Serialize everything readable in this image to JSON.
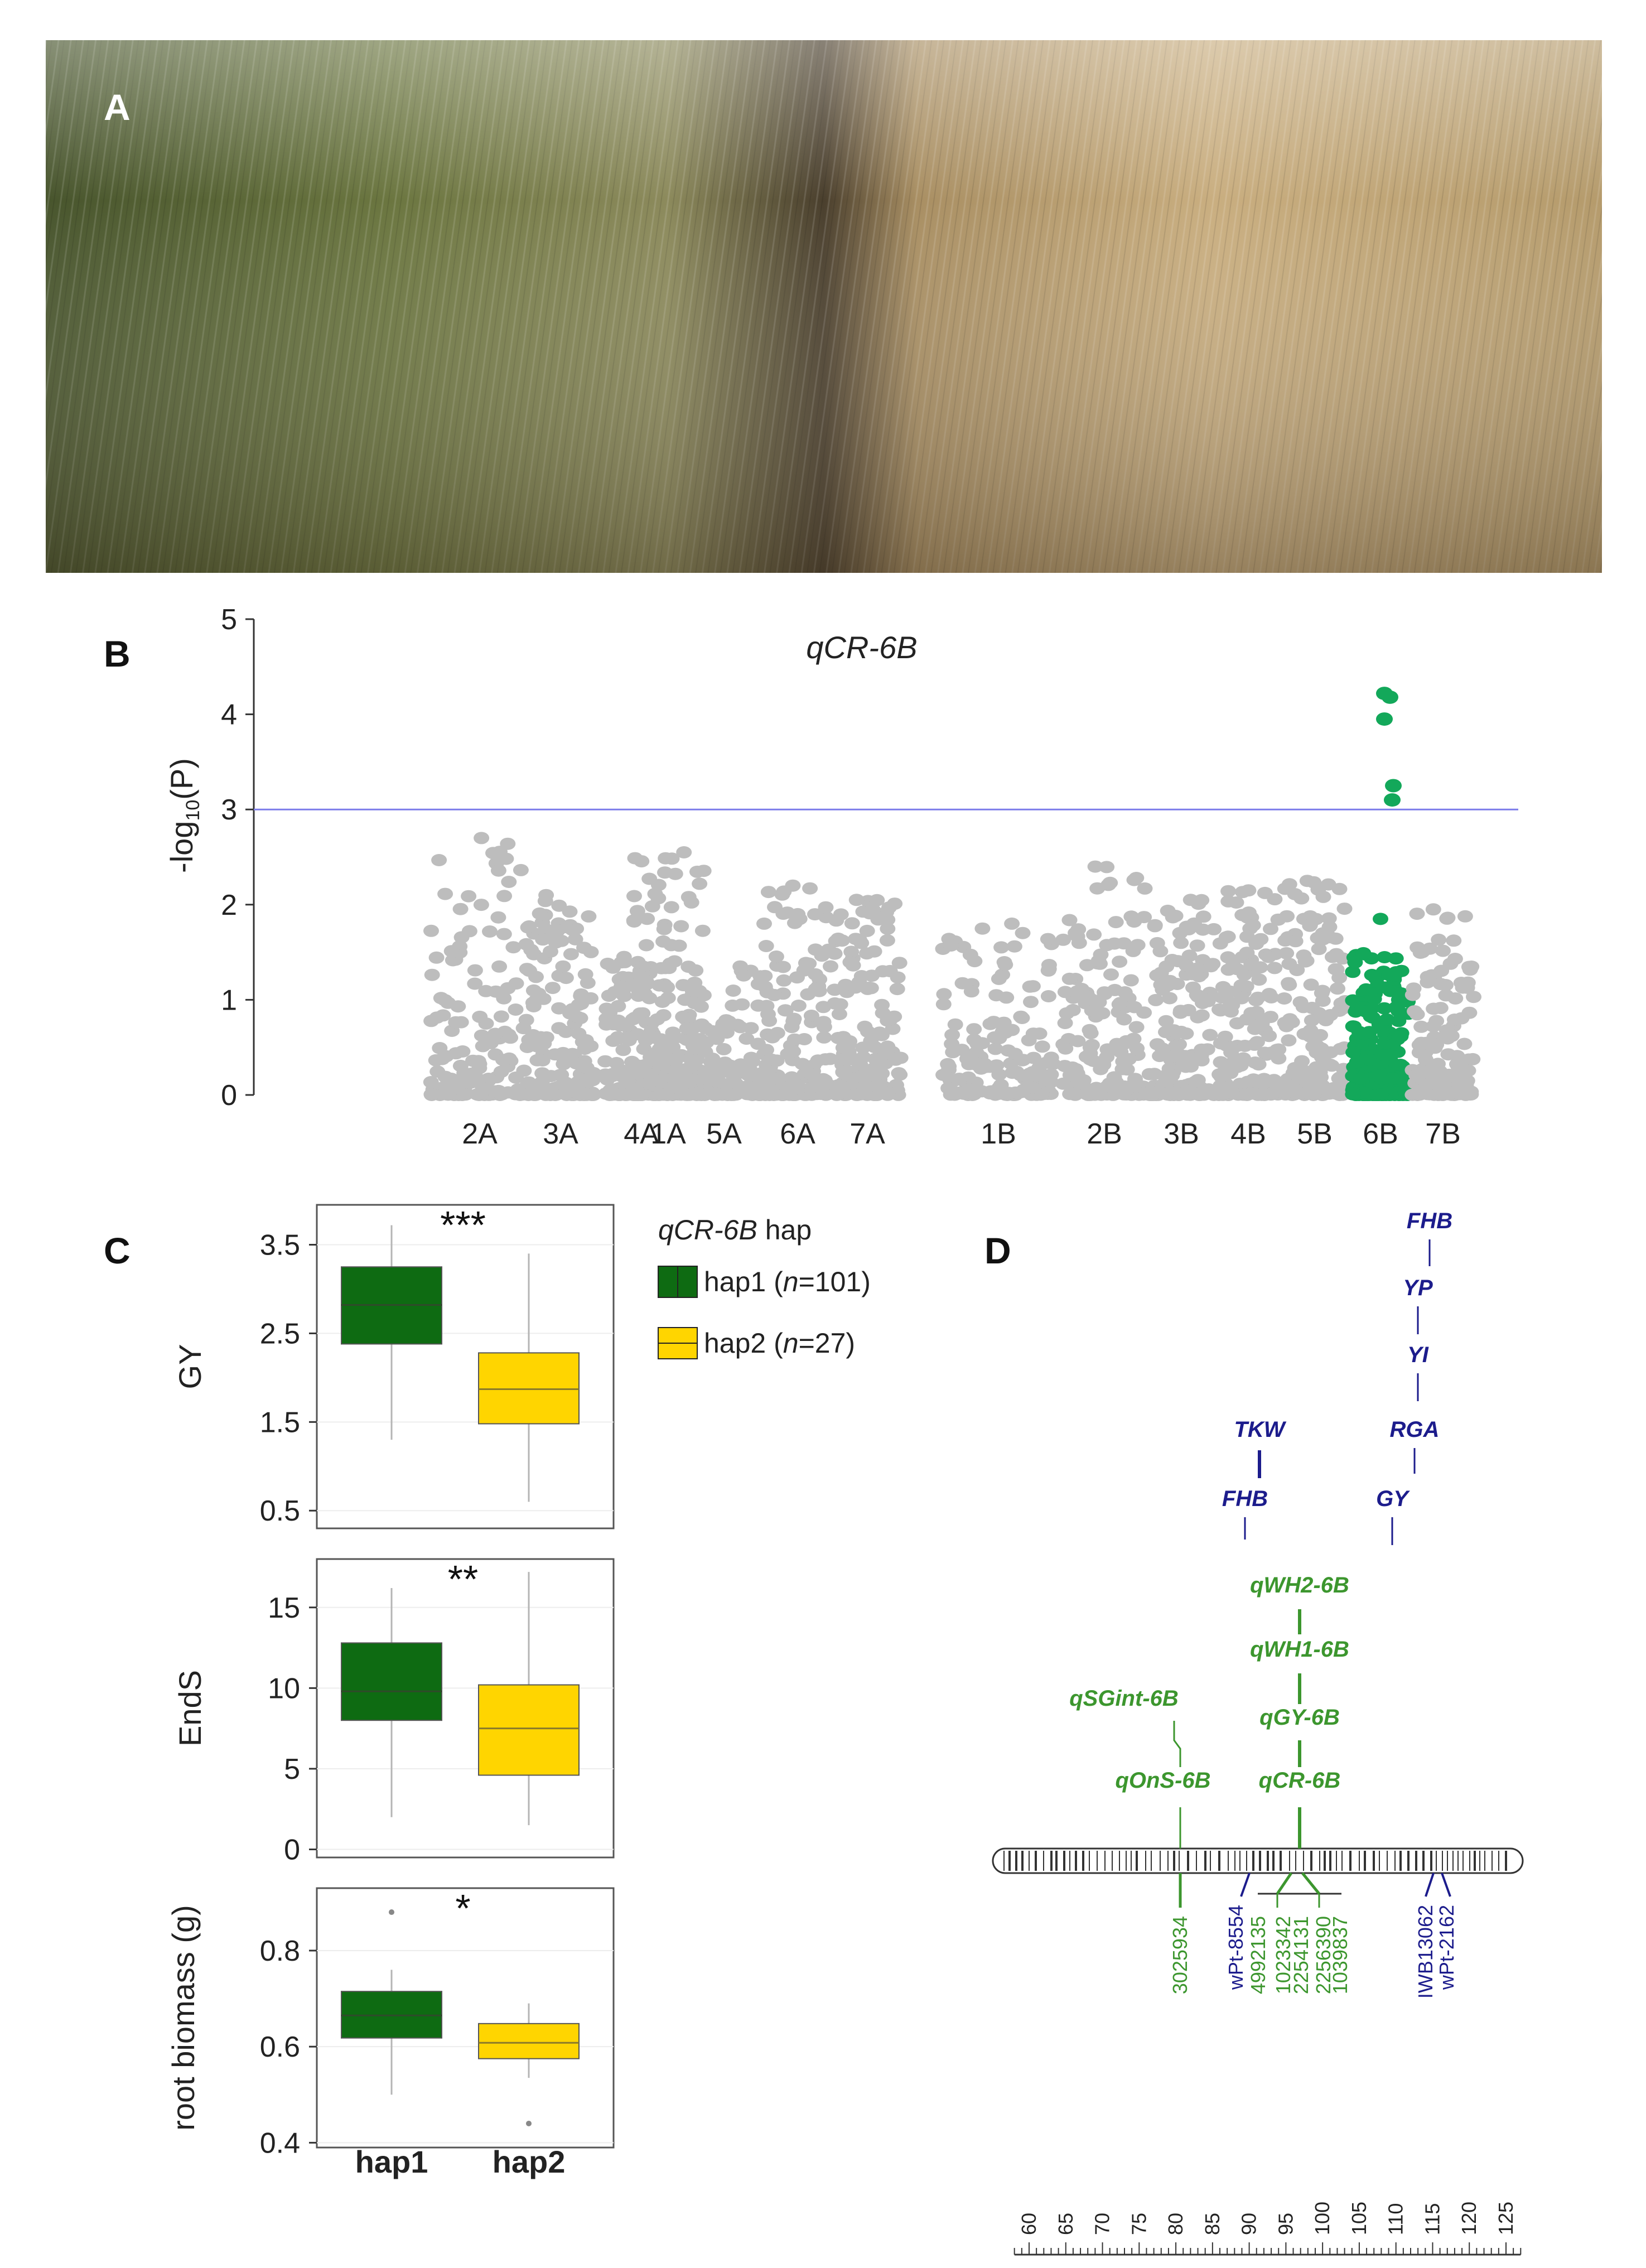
{
  "colors": {
    "gray_points": "#bdbdbd",
    "green_points": "#13a85a",
    "threshold_line": "#7b7bea",
    "hap1_fill": "#0e6b12",
    "hap2_fill": "#ffd500",
    "map_blue": "#1c1c8c",
    "map_green": "#3c962e"
  },
  "panels": {
    "a": "A",
    "b": "B",
    "c": "C",
    "d": "D"
  },
  "chart_data": [
    {
      "panel": "B",
      "type": "scatter",
      "title": "qCR-6B",
      "ylabel_prefix": "-log",
      "ylabel_sub": "10",
      "ylabel_suffix": "(P)",
      "ylim": [
        0,
        5
      ],
      "yticks": [
        "0",
        "1",
        "2",
        "3",
        "4",
        "5"
      ],
      "threshold": 3,
      "chromosomes": [
        "1A",
        "2A",
        "3A",
        "4A",
        "5A",
        "6A",
        "7A",
        "1B",
        "2B",
        "3B",
        "4B",
        "5B",
        "6B",
        "7B"
      ],
      "highlighted_chromosome": "6B",
      "peaks": [
        2.55,
        2.7,
        2.1,
        1.45,
        1.35,
        2.2,
        2.05,
        1.8,
        2.4,
        2.05,
        2.15,
        2.25,
        4.2,
        1.95
      ],
      "significant_points": [
        4.22,
        4.18,
        3.95,
        3.25,
        3.1
      ],
      "grid": false
    },
    {
      "panel": "C",
      "type": "box",
      "legend_title_italic": "qCR-6B",
      "legend_title_suffix": " hap",
      "legend": [
        {
          "name_prefix": "hap1 (",
          "name_n": "n",
          "name_suffix": "=101)"
        },
        {
          "name_prefix": "hap2 (",
          "name_n": "n",
          "name_suffix": "=27)"
        }
      ],
      "categories": [
        "hap1",
        "hap2"
      ],
      "plots": [
        {
          "ylabel": "GY",
          "significance": "***",
          "ylim": [
            0.3,
            3.95
          ],
          "yticks": [
            "0.5",
            "1.5",
            "2.5",
            "3.5"
          ],
          "ytick_values": [
            0.5,
            1.5,
            2.5,
            3.5
          ],
          "boxes": [
            {
              "min": 1.3,
              "q1": 2.38,
              "median": 2.82,
              "q3": 3.25,
              "max": 3.72
            },
            {
              "min": 0.6,
              "q1": 1.48,
              "median": 1.87,
              "q3": 2.28,
              "max": 3.4
            }
          ]
        },
        {
          "ylabel": "EndS",
          "significance": "**",
          "ylim": [
            -0.5,
            18
          ],
          "yticks": [
            "0",
            "5",
            "10",
            "15"
          ],
          "ytick_values": [
            0,
            5,
            10,
            15
          ],
          "boxes": [
            {
              "min": 2,
              "q1": 8,
              "median": 9.8,
              "q3": 12.8,
              "max": 16.2
            },
            {
              "min": 1.5,
              "q1": 4.6,
              "median": 7.5,
              "q3": 10.2,
              "max": 17.2
            }
          ]
        },
        {
          "ylabel": "root biomass (g)",
          "significance": "*",
          "ylim": [
            0.39,
            0.93
          ],
          "yticks": [
            "0.4",
            "0.6",
            "0.8"
          ],
          "ytick_values": [
            0.4,
            0.6,
            0.8
          ],
          "boxes": [
            {
              "min": 0.5,
              "q1": 0.618,
              "median": 0.665,
              "q3": 0.715,
              "max": 0.76,
              "outliers": [
                0.88
              ]
            },
            {
              "min": 0.535,
              "q1": 0.575,
              "median": 0.608,
              "q3": 0.648,
              "max": 0.69,
              "outliers": [
                0.44
              ]
            }
          ]
        }
      ]
    },
    {
      "panel": "D",
      "type": "genetic_map",
      "scale_ticks": [
        "60",
        "65",
        "70",
        "75",
        "80",
        "85",
        "90",
        "95",
        "100",
        "105",
        "110",
        "115",
        "120",
        "125"
      ],
      "scale_values": [
        60,
        65,
        70,
        75,
        80,
        85,
        90,
        95,
        100,
        105,
        110,
        115,
        120,
        125
      ],
      "qtl_green": [
        {
          "name": "qSGint-6B",
          "cm": 82.5
        },
        {
          "name": "qOnS-6B",
          "cm": 82.5
        },
        {
          "name": "qWH2-6B",
          "cm": 100.5
        },
        {
          "name": "qWH1-6B",
          "cm": 100.5
        },
        {
          "name": "qGY-6B",
          "cm": 100.5
        },
        {
          "name": "qCR-6B",
          "cm": 100.5
        }
      ],
      "qtl_blue": [
        {
          "name": "TKW",
          "cm": 96
        },
        {
          "name": "FHB",
          "cm": 96
        },
        {
          "name": "FHB",
          "cm": 115
        },
        {
          "name": "YP",
          "cm": 115
        },
        {
          "name": "YI",
          "cm": 115
        },
        {
          "name": "RGA",
          "cm": 115
        },
        {
          "name": "GY",
          "cm": 115
        }
      ],
      "markers_green": [
        {
          "name": "3025934",
          "cm": 82.5
        },
        {
          "name": "4992135",
          "cm": 95.5
        },
        {
          "name": "1023342",
          "cm": 97.5
        },
        {
          "name": "2254131",
          "cm": 99.5
        },
        {
          "name": "2256390",
          "cm": 101.5
        },
        {
          "name": "1039837",
          "cm": 103.5
        }
      ],
      "markers_blue": [
        {
          "name": "wPt-8554",
          "cm": 90
        },
        {
          "name": "IWB13062",
          "cm": 117.5
        },
        {
          "name": "wPt-2162",
          "cm": 120
        }
      ]
    }
  ]
}
